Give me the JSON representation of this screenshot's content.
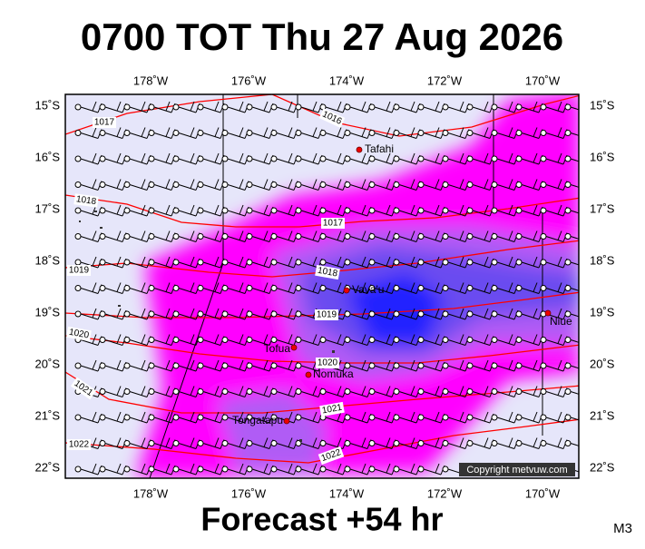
{
  "title": "0700 TOT Thu 27 Aug 2026",
  "footer": "Forecast +54 hr",
  "model": "M3",
  "copyright": "Copyright metvuw.com",
  "x_axis": {
    "labels": [
      "178˚W",
      "176˚W",
      "174˚W",
      "172˚W",
      "170˚W"
    ]
  },
  "y_axis": {
    "labels": [
      "15˚S",
      "16˚S",
      "17˚S",
      "18˚S",
      "19˚S",
      "20˚S",
      "21˚S",
      "22˚S"
    ]
  },
  "isobar_labels": [
    "1017",
    "1016",
    "1018",
    "1017",
    "1019",
    "1018",
    "1019",
    "1020",
    "1020",
    "1021",
    "1021",
    "1022",
    "1022"
  ],
  "places": [
    "Tafahi",
    "Vava'u",
    "Niue",
    "Tofua",
    "Nomuka",
    "Tongatapu"
  ]
}
